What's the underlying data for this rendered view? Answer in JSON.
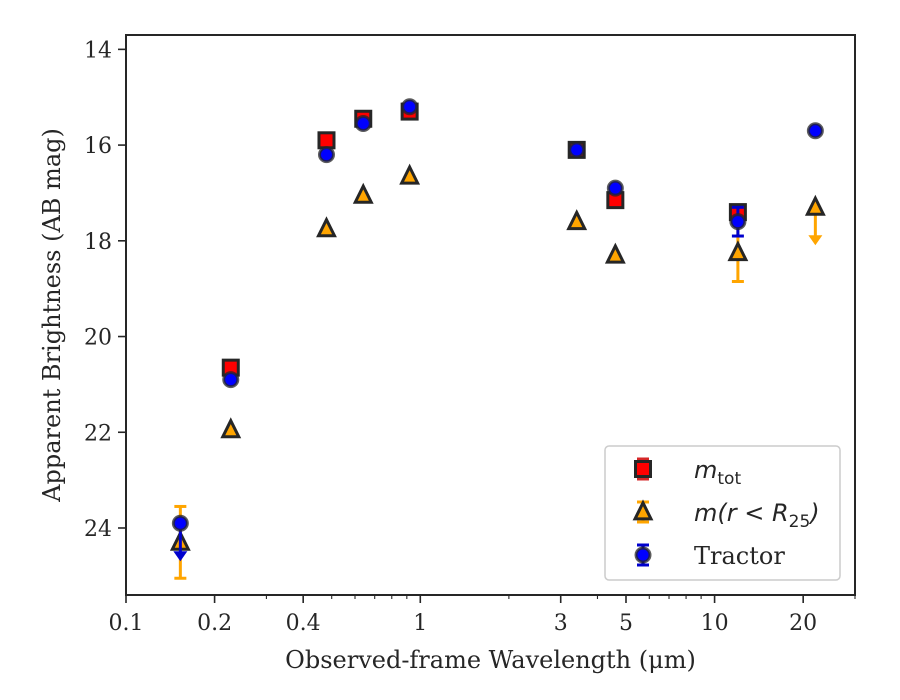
{
  "chart_data": {
    "type": "scatter",
    "xlabel": "Observed-frame Wavelength (μm)",
    "ylabel": "Apparent Brightness (AB mag)",
    "xscale": "log",
    "xlim": [
      0.1,
      30
    ],
    "ylim": [
      25.4,
      13.7
    ],
    "y_inverted": true,
    "grid": false,
    "legend_position": "bottom-right",
    "x_ticks": [
      {
        "value": 0.1,
        "label": "0.1"
      },
      {
        "value": 0.2,
        "label": "0.2"
      },
      {
        "value": 0.4,
        "label": "0.4"
      },
      {
        "value": 1,
        "label": "1"
      },
      {
        "value": 3,
        "label": "3"
      },
      {
        "value": 5,
        "label": "5"
      },
      {
        "value": 10,
        "label": "10"
      },
      {
        "value": 20,
        "label": "20"
      }
    ],
    "y_ticks": [
      {
        "value": 14,
        "label": "14"
      },
      {
        "value": 16,
        "label": "16"
      },
      {
        "value": 18,
        "label": "18"
      },
      {
        "value": 20,
        "label": "20"
      },
      {
        "value": 22,
        "label": "22"
      },
      {
        "value": 24,
        "label": "24"
      }
    ],
    "series": [
      {
        "name": "m_tot",
        "legend_label": {
          "main": "m",
          "sub": "tot"
        },
        "marker": "square",
        "face_color": "#ff0000",
        "edge_color": "#262626",
        "errorbar_color": "#d62728",
        "points": [
          {
            "x": 0.227,
            "y": 20.65
          },
          {
            "x": 0.48,
            "y": 15.9
          },
          {
            "x": 0.64,
            "y": 15.45
          },
          {
            "x": 0.92,
            "y": 15.3
          },
          {
            "x": 3.4,
            "y": 16.1
          },
          {
            "x": 4.6,
            "y": 17.15
          },
          {
            "x": 12.0,
            "y": 17.4
          }
        ]
      },
      {
        "name": "m(r<R25)",
        "legend_label": {
          "main": "m(r < R",
          "sub": "25",
          "after": ")"
        },
        "marker": "triangle",
        "face_color": "#ffa500",
        "edge_color": "#262626",
        "errorbar_color": "#ffa500",
        "points": [
          {
            "x": 0.153,
            "y": 24.3,
            "yerr": 0.75
          },
          {
            "x": 0.227,
            "y": 21.95
          },
          {
            "x": 0.48,
            "y": 17.75
          },
          {
            "x": 0.64,
            "y": 17.05
          },
          {
            "x": 0.92,
            "y": 16.65
          },
          {
            "x": 3.4,
            "y": 17.6
          },
          {
            "x": 4.6,
            "y": 18.3
          },
          {
            "x": 12.0,
            "y": 18.25,
            "yerr": 0.6
          },
          {
            "x": 22.0,
            "y": 17.3,
            "upper_limit": true
          }
        ]
      },
      {
        "name": "Tractor",
        "legend_label": {
          "main": "Tractor"
        },
        "marker": "circle",
        "face_color": "#0000ff",
        "edge_color": "#262626",
        "errorbar_color": "#0000cd",
        "points": [
          {
            "x": 0.153,
            "y": 23.9,
            "upper_limit": true
          },
          {
            "x": 0.227,
            "y": 20.9
          },
          {
            "x": 0.48,
            "y": 16.2
          },
          {
            "x": 0.64,
            "y": 15.55
          },
          {
            "x": 0.92,
            "y": 15.2
          },
          {
            "x": 3.4,
            "y": 16.1
          },
          {
            "x": 4.6,
            "y": 16.9
          },
          {
            "x": 12.0,
            "y": 17.6,
            "yerr": 0.3
          },
          {
            "x": 22.0,
            "y": 15.7
          }
        ]
      }
    ]
  }
}
